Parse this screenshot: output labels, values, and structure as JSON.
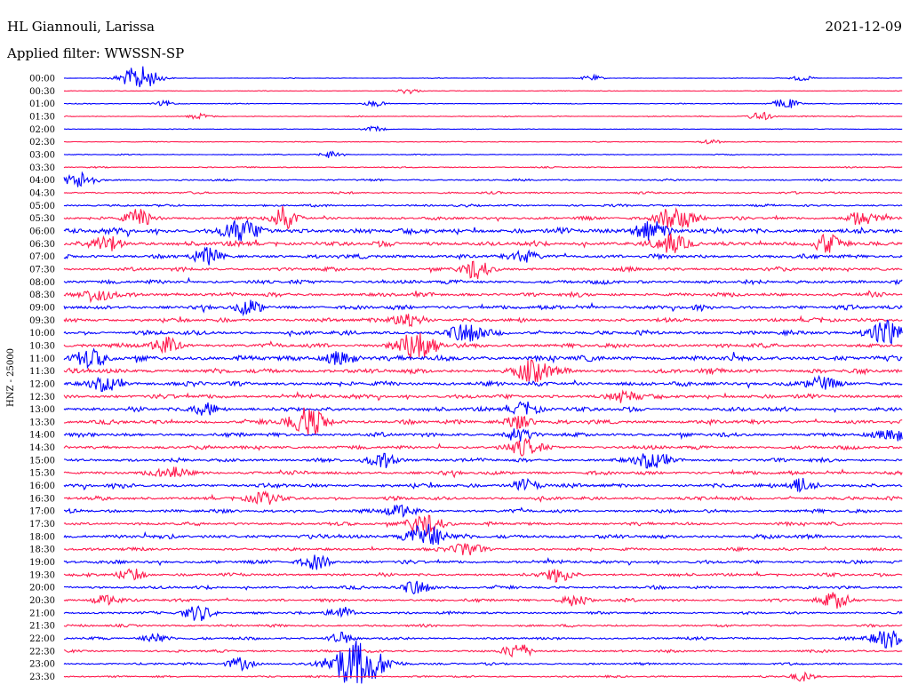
{
  "header": {
    "station": "HL Giannouli, Larissa",
    "date": "2021-12-09",
    "filter": "Applied filter: WWSSN-SP"
  },
  "chart_data": {
    "type": "line",
    "subtype": "helicorder",
    "ylabel": "HNZ - 25000",
    "row_labels": [
      "00:00",
      "00:30",
      "01:00",
      "01:30",
      "02:00",
      "02:30",
      "03:00",
      "03:30",
      "04:00",
      "04:30",
      "05:00",
      "05:30",
      "06:00",
      "06:30",
      "07:00",
      "07:30",
      "08:00",
      "08:30",
      "09:00",
      "09:30",
      "10:00",
      "10:30",
      "11:00",
      "11:30",
      "12:00",
      "12:30",
      "13:00",
      "13:30",
      "14:00",
      "14:30",
      "15:00",
      "15:30",
      "16:00",
      "16:30",
      "17:00",
      "17:30",
      "18:00",
      "18:30",
      "19:00",
      "19:30",
      "20:00",
      "20:30",
      "21:00",
      "21:30",
      "22:00",
      "22:30",
      "23:00",
      "23:30"
    ],
    "colors": [
      "#0000ff",
      "#ff1a4d"
    ],
    "noise_level": [
      0.3,
      0.3,
      0.4,
      0.5,
      0.3,
      0.4,
      0.5,
      0.6,
      0.9,
      1.0,
      1.1,
      1.5,
      2.6,
      2.3,
      2.0,
      1.8,
      1.9,
      1.9,
      2.0,
      1.9,
      2.0,
      2.1,
      2.6,
      2.3,
      2.2,
      2.0,
      2.0,
      2.0,
      1.9,
      1.8,
      1.8,
      1.8,
      1.9,
      1.7,
      1.7,
      1.6,
      2.0,
      1.5,
      1.6,
      1.5,
      1.5,
      1.4,
      1.2,
      1.2,
      1.3,
      1.2,
      1.1,
      0.9
    ],
    "events": [
      {
        "row": 0,
        "pos": 0.09,
        "amp": 14
      },
      {
        "row": 0,
        "pos": 0.63,
        "amp": 3
      },
      {
        "row": 0,
        "pos": 0.88,
        "amp": 3
      },
      {
        "row": 1,
        "pos": 0.41,
        "amp": 3
      },
      {
        "row": 2,
        "pos": 0.12,
        "amp": 3
      },
      {
        "row": 2,
        "pos": 0.37,
        "amp": 3
      },
      {
        "row": 2,
        "pos": 0.86,
        "amp": 6
      },
      {
        "row": 3,
        "pos": 0.16,
        "amp": 3
      },
      {
        "row": 3,
        "pos": 0.83,
        "amp": 5
      },
      {
        "row": 4,
        "pos": 0.37,
        "amp": 3
      },
      {
        "row": 5,
        "pos": 0.77,
        "amp": 3
      },
      {
        "row": 6,
        "pos": 0.32,
        "amp": 4
      },
      {
        "row": 8,
        "pos": 0.02,
        "amp": 9
      },
      {
        "row": 11,
        "pos": 0.09,
        "amp": 9
      },
      {
        "row": 11,
        "pos": 0.26,
        "amp": 6
      },
      {
        "row": 11,
        "pos": 0.26,
        "amp": 7
      },
      {
        "row": 11,
        "pos": 0.73,
        "amp": 14
      },
      {
        "row": 11,
        "pos": 0.95,
        "amp": 8
      },
      {
        "row": 12,
        "pos": 0.21,
        "amp": 12
      },
      {
        "row": 12,
        "pos": 0.7,
        "amp": 11
      },
      {
        "row": 13,
        "pos": 0.05,
        "amp": 9
      },
      {
        "row": 13,
        "pos": 0.72,
        "amp": 10
      },
      {
        "row": 13,
        "pos": 0.91,
        "amp": 9
      },
      {
        "row": 14,
        "pos": 0.17,
        "amp": 8
      },
      {
        "row": 14,
        "pos": 0.55,
        "amp": 6
      },
      {
        "row": 15,
        "pos": 0.49,
        "amp": 9
      },
      {
        "row": 17,
        "pos": 0.04,
        "amp": 8
      },
      {
        "row": 18,
        "pos": 0.22,
        "amp": 7
      },
      {
        "row": 19,
        "pos": 0.41,
        "amp": 9
      },
      {
        "row": 20,
        "pos": 0.48,
        "amp": 11
      },
      {
        "row": 20,
        "pos": 0.98,
        "amp": 14
      },
      {
        "row": 21,
        "pos": 0.42,
        "amp": 16
      },
      {
        "row": 21,
        "pos": 0.12,
        "amp": 8
      },
      {
        "row": 22,
        "pos": 0.03,
        "amp": 9
      },
      {
        "row": 22,
        "pos": 0.33,
        "amp": 8
      },
      {
        "row": 23,
        "pos": 0.56,
        "amp": 12
      },
      {
        "row": 24,
        "pos": 0.05,
        "amp": 8
      },
      {
        "row": 24,
        "pos": 0.9,
        "amp": 7
      },
      {
        "row": 25,
        "pos": 0.67,
        "amp": 7
      },
      {
        "row": 26,
        "pos": 0.17,
        "amp": 7
      },
      {
        "row": 26,
        "pos": 0.55,
        "amp": 8
      },
      {
        "row": 27,
        "pos": 0.29,
        "amp": 15
      },
      {
        "row": 27,
        "pos": 0.54,
        "amp": 8
      },
      {
        "row": 28,
        "pos": 0.54,
        "amp": 7
      },
      {
        "row": 28,
        "pos": 0.99,
        "amp": 7
      },
      {
        "row": 29,
        "pos": 0.55,
        "amp": 9
      },
      {
        "row": 30,
        "pos": 0.38,
        "amp": 8
      },
      {
        "row": 30,
        "pos": 0.7,
        "amp": 9
      },
      {
        "row": 31,
        "pos": 0.13,
        "amp": 7
      },
      {
        "row": 32,
        "pos": 0.55,
        "amp": 7
      },
      {
        "row": 32,
        "pos": 0.88,
        "amp": 8
      },
      {
        "row": 33,
        "pos": 0.24,
        "amp": 7
      },
      {
        "row": 34,
        "pos": 0.4,
        "amp": 7
      },
      {
        "row": 35,
        "pos": 0.43,
        "amp": 12
      },
      {
        "row": 36,
        "pos": 0.43,
        "amp": 14
      },
      {
        "row": 37,
        "pos": 0.48,
        "amp": 8
      },
      {
        "row": 38,
        "pos": 0.3,
        "amp": 8
      },
      {
        "row": 39,
        "pos": 0.08,
        "amp": 7
      },
      {
        "row": 39,
        "pos": 0.59,
        "amp": 8
      },
      {
        "row": 40,
        "pos": 0.42,
        "amp": 8
      },
      {
        "row": 41,
        "pos": 0.05,
        "amp": 6
      },
      {
        "row": 41,
        "pos": 0.61,
        "amp": 7
      },
      {
        "row": 41,
        "pos": 0.92,
        "amp": 9
      },
      {
        "row": 42,
        "pos": 0.16,
        "amp": 9
      },
      {
        "row": 42,
        "pos": 0.33,
        "amp": 7
      },
      {
        "row": 44,
        "pos": 0.11,
        "amp": 6
      },
      {
        "row": 44,
        "pos": 0.33,
        "amp": 6
      },
      {
        "row": 44,
        "pos": 0.98,
        "amp": 10
      },
      {
        "row": 45,
        "pos": 0.54,
        "amp": 8
      },
      {
        "row": 46,
        "pos": 0.21,
        "amp": 7
      },
      {
        "row": 46,
        "pos": 0.35,
        "amp": 26
      },
      {
        "row": 47,
        "pos": 0.88,
        "amp": 5
      }
    ]
  }
}
